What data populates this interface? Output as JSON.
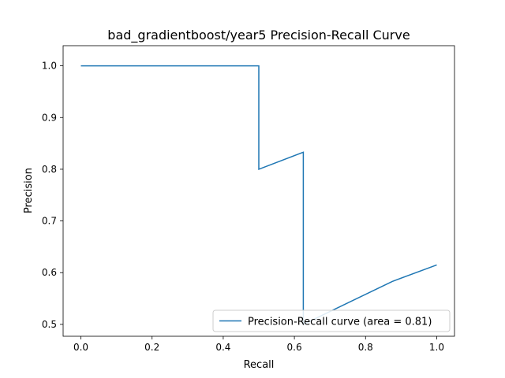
{
  "chart_data": {
    "type": "line",
    "title": "bad_gradientboost/year5 Precision-Recall Curve",
    "xlabel": "Recall",
    "ylabel": "Precision",
    "xlim": [
      -0.05,
      1.05
    ],
    "ylim": [
      0.477,
      1.039
    ],
    "x_ticks": [
      0.0,
      0.2,
      0.4,
      0.6,
      0.8,
      1.0
    ],
    "x_tick_labels": [
      "0.0",
      "0.2",
      "0.4",
      "0.6",
      "0.8",
      "1.0"
    ],
    "y_ticks": [
      0.5,
      0.6,
      0.7,
      0.8,
      0.9,
      1.0
    ],
    "y_tick_labels": [
      "0.5",
      "0.6",
      "0.7",
      "0.8",
      "0.9",
      "1.0"
    ],
    "grid": false,
    "legend_position": "lower-right",
    "series": [
      {
        "name": "Precision-Recall curve (area = 0.81)",
        "color": "#1f77b4",
        "x": [
          0.0,
          0.5,
          0.5,
          0.625,
          0.625,
          0.625,
          0.875,
          1.0
        ],
        "y": [
          1.0,
          1.0,
          0.8,
          0.833,
          0.5,
          0.5,
          0.583,
          0.615
        ]
      }
    ]
  }
}
